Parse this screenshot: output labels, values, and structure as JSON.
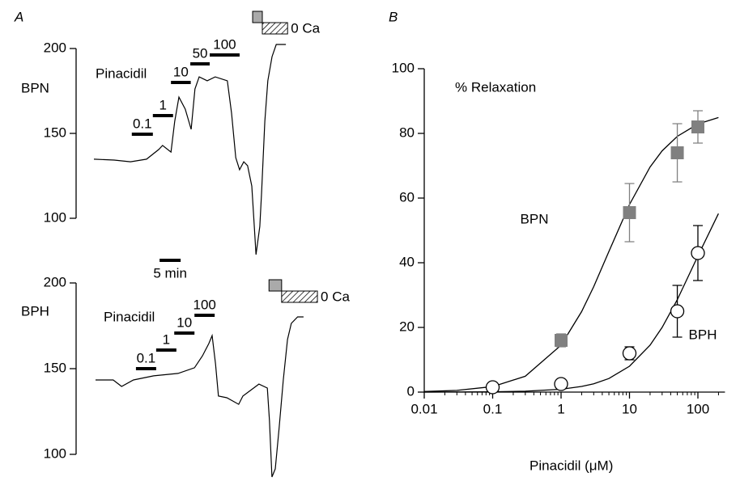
{
  "chart_data": [
    {
      "type": "trace",
      "panel": "A",
      "ylabel": "BPN",
      "drug_label": "Pinacidil",
      "xlim": [
        0,
        53
      ],
      "ylim": [
        100,
        200
      ],
      "yticks": [
        100,
        150,
        200
      ],
      "x": [
        0,
        4.8,
        8.7,
        12.5,
        15.4,
        16.3,
        18.3,
        19.2,
        20.2,
        21.7,
        23.1,
        24,
        25,
        26.9,
        28.8,
        31.7,
        32.7,
        33.7,
        34.6,
        35.6,
        36.5,
        37.5,
        38.1,
        38.5,
        39.4,
        39.8,
        40.6,
        41.3,
        42.3,
        43.3,
        45.6
      ],
      "values": [
        134.8,
        134.3,
        133.3,
        134.8,
        140.5,
        142.9,
        139,
        157.1,
        171.4,
        164.3,
        152.4,
        176.2,
        183.3,
        181,
        183.3,
        181,
        161.9,
        135.7,
        128.6,
        133.3,
        131,
        119,
        95.2,
        78.6,
        95.2,
        114.3,
        157.1,
        181,
        195.2,
        202.4,
        202.4
      ],
      "applications": [
        {
          "label": "0.1",
          "start": 9,
          "end": 14
        },
        {
          "label": "1",
          "start": 14,
          "end": 18.8
        },
        {
          "label": "10",
          "start": 18.3,
          "end": 23
        },
        {
          "label": "50",
          "start": 22.9,
          "end": 27.5
        },
        {
          "label": "100",
          "start": 27.5,
          "end": 34.6
        }
      ],
      "zero_ca": {
        "label": "0 Ca",
        "gray": [
          37.7,
          40
        ],
        "hatched": [
          40,
          46
        ]
      },
      "scale_bar": {
        "value": 5,
        "label": "5 min"
      }
    },
    {
      "type": "trace",
      "ylabel": "BPH",
      "drug_label": "Pinacidil",
      "xlim": [
        0,
        53
      ],
      "ylim": [
        100,
        200
      ],
      "yticks": [
        100,
        150,
        200
      ],
      "x": [
        0,
        4.2,
        6.2,
        9,
        13.8,
        19.6,
        23.5,
        25.4,
        26.9,
        27.7,
        28.5,
        29.2,
        31.2,
        34,
        35,
        38.8,
        40.8,
        41.3,
        41.9,
        42.7,
        43.6,
        44.6,
        45.6,
        46.5,
        48,
        49.4
      ],
      "values": [
        143.4,
        143.4,
        139.6,
        143.4,
        145.8,
        147.2,
        150.5,
        157.5,
        164.6,
        169.3,
        152.8,
        134,
        133,
        129.2,
        134,
        141,
        138.7,
        119.8,
        86.8,
        91.5,
        115.1,
        143.4,
        167,
        176.4,
        180.2,
        180.2
      ],
      "applications": [
        {
          "label": "0.1",
          "start": 9.6,
          "end": 14.4
        },
        {
          "label": "1",
          "start": 14.4,
          "end": 19.2
        },
        {
          "label": "10",
          "start": 18.7,
          "end": 23.5
        },
        {
          "label": "100",
          "start": 23.5,
          "end": 28.3
        }
      ],
      "zero_ca": {
        "label": "0 Ca",
        "gray": [
          41.2,
          44.2
        ],
        "hatched": [
          44.2,
          52.7
        ]
      }
    },
    {
      "type": "scatter",
      "panel": "B",
      "annotation": "% Relaxation",
      "xlabel": "Pinacidil (μM)",
      "log_x": true,
      "xlim": [
        0.01,
        200
      ],
      "xticks": [
        0.01,
        0.1,
        1,
        10,
        100
      ],
      "ylim": [
        0,
        100
      ],
      "yticks": [
        0,
        20,
        40,
        60,
        80,
        100
      ],
      "series": [
        {
          "name": "BPN",
          "color": "#808080",
          "marker": "square",
          "x": [
            1,
            10,
            50,
            100
          ],
          "values": [
            16,
            55.5,
            74,
            82
          ],
          "errors": [
            2,
            9,
            9,
            5
          ]
        },
        {
          "name": "BPH",
          "color": "#000000",
          "marker": "circle",
          "x": [
            0.1,
            1,
            10,
            50,
            100
          ],
          "values": [
            1.5,
            2.5,
            12,
            25,
            43
          ],
          "errors": [
            1,
            1,
            2,
            8,
            8.5
          ]
        }
      ],
      "fits": [
        {
          "x": [
            0.01,
            0.03,
            0.1,
            0.3,
            1,
            2,
            3,
            5,
            10,
            20,
            30,
            50,
            100,
            200
          ],
          "values": [
            0.17,
            0.52,
            1.7,
            4.9,
            14.5,
            24.9,
            32.6,
            43.5,
            58,
            69.6,
            74.6,
            79.1,
            82.9,
            84.9
          ]
        },
        {
          "x": [
            0.01,
            0.1,
            0.3,
            1,
            2,
            3,
            5,
            10,
            20,
            30,
            50,
            100,
            200
          ],
          "values": [
            0.01,
            0.09,
            0.27,
            0.88,
            1.74,
            2.58,
            4.21,
            8,
            14.5,
            20,
            28.6,
            42.1,
            55.2
          ]
        }
      ]
    }
  ]
}
